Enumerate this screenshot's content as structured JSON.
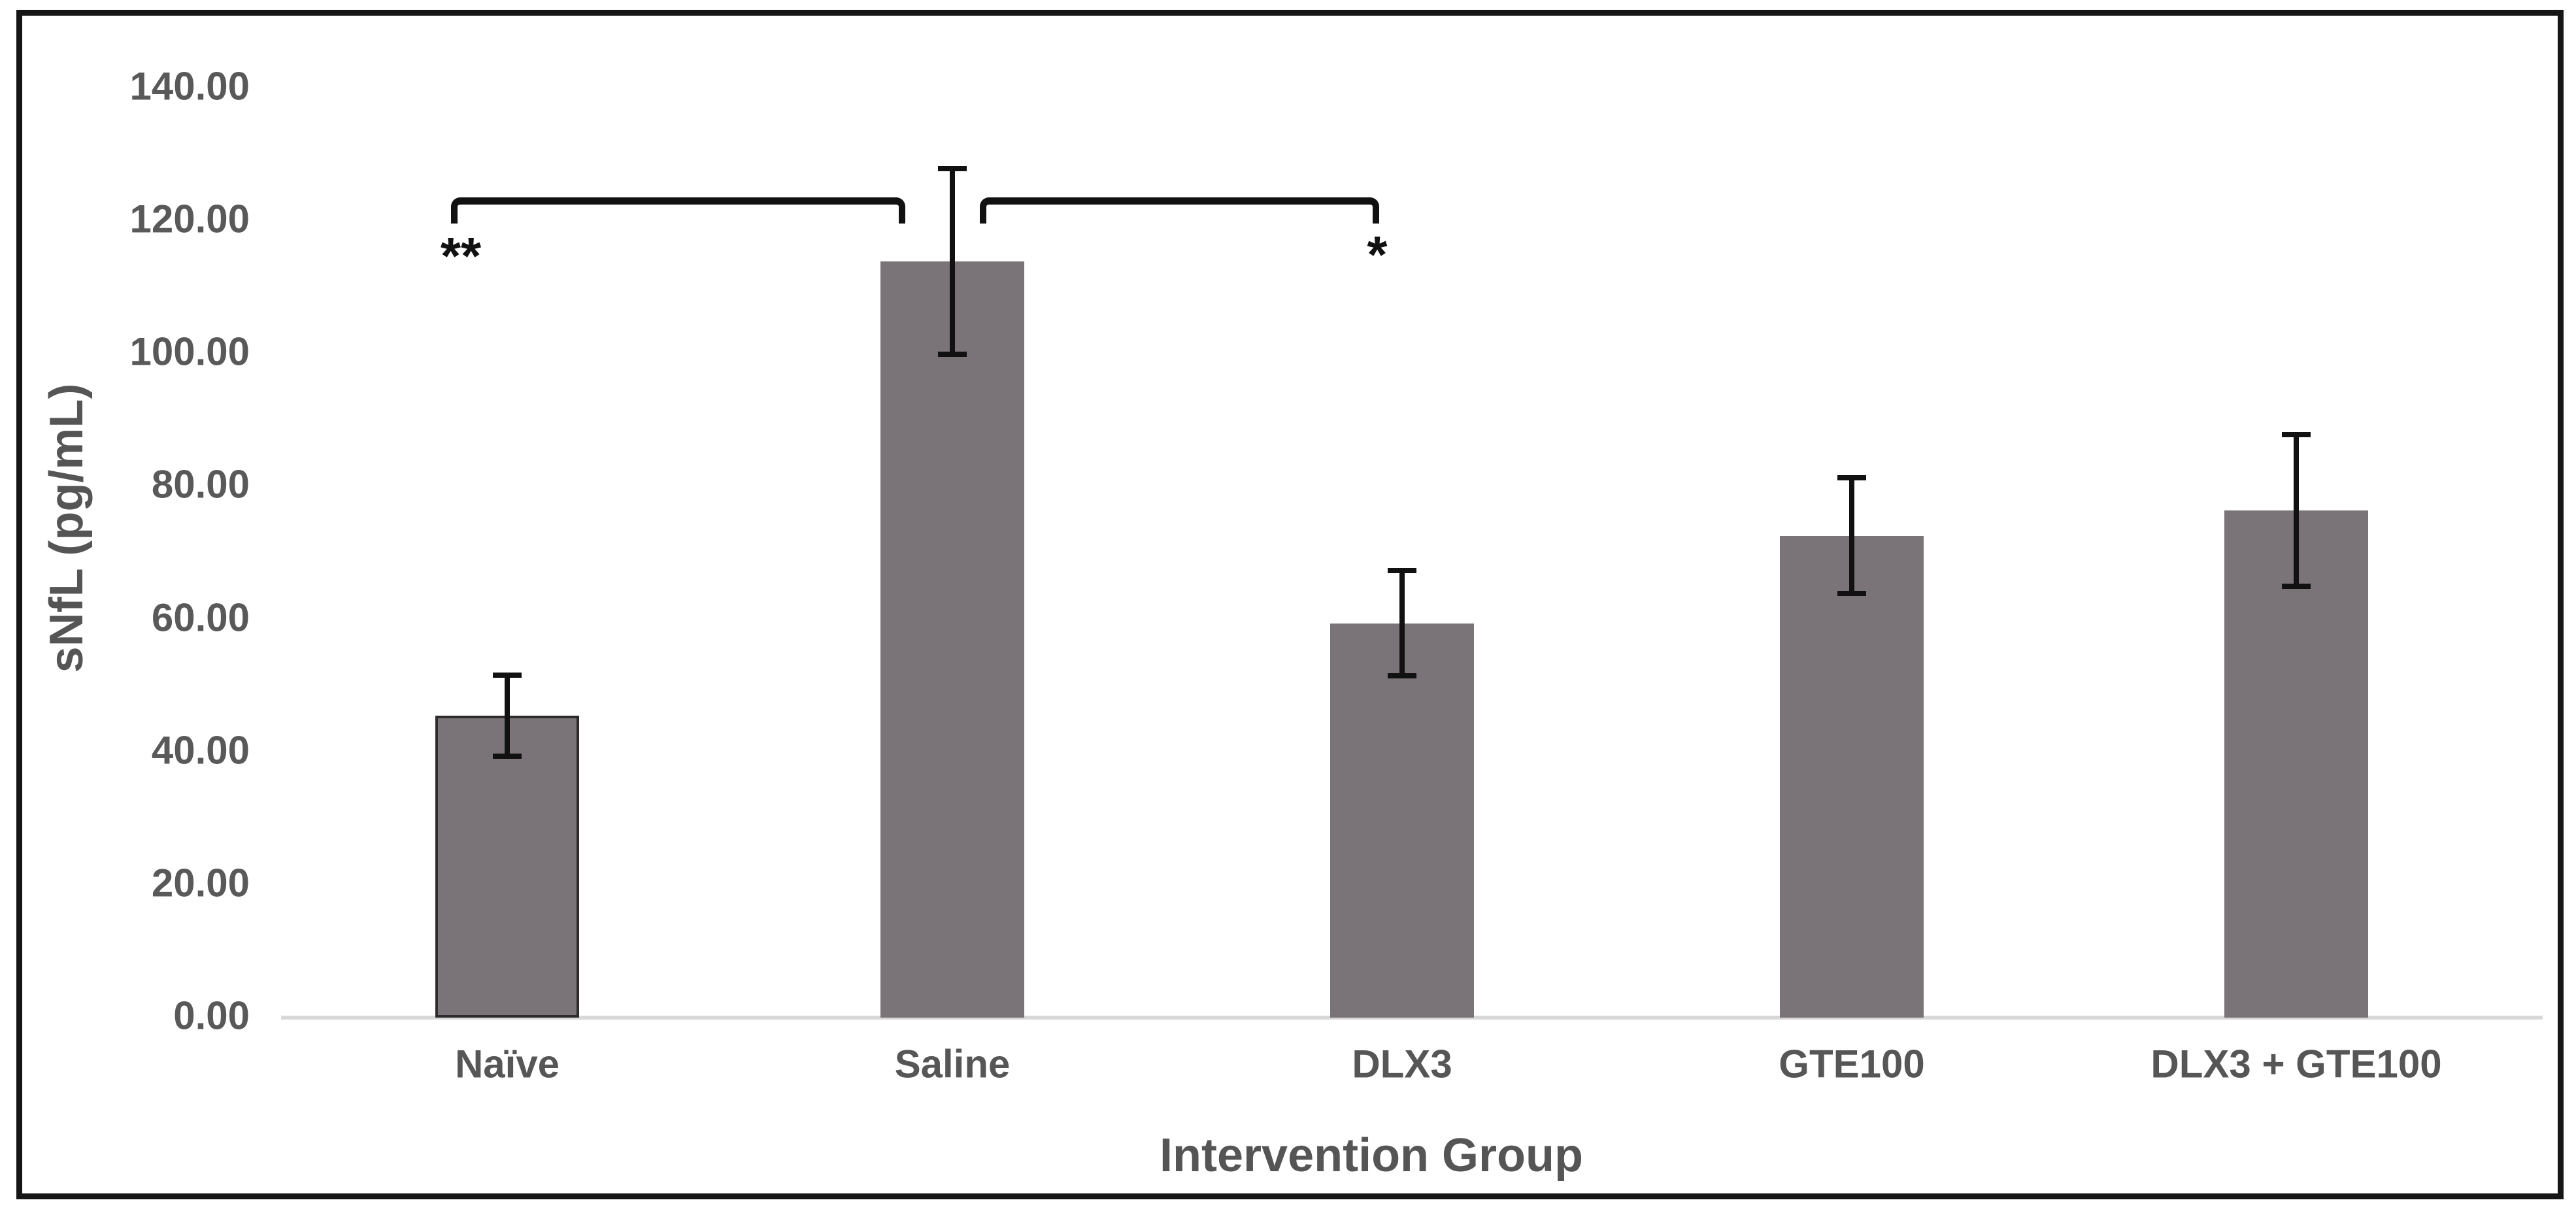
{
  "chart_data": {
    "type": "bar",
    "title": "",
    "categories": [
      "Naïve",
      "Saline",
      "DLX3",
      "GTE100",
      "DLX3 + GTE100"
    ],
    "values": [
      45.5,
      113.9,
      59.4,
      72.6,
      76.4
    ],
    "errors": [
      6.1,
      14.0,
      7.9,
      8.7,
      11.4
    ],
    "xlabel": "Intervention Group",
    "ylabel": "sNfL (pg/mL)",
    "ylim": [
      0,
      140
    ],
    "ytick_step": 20,
    "ytick_labels": [
      "0.00",
      "20.00",
      "40.00",
      "60.00",
      "80.00",
      "100.00",
      "120.00",
      "140.00"
    ],
    "grid": false,
    "legend": "none",
    "bar_color": "#7a7478",
    "outlined_bar": "Naïve",
    "error_bar_color": "#111111",
    "axis_line_color": "#d8d8d8",
    "text_color": "#595959",
    "significance": [
      {
        "from": "Naïve",
        "to": "Saline",
        "label": "**"
      },
      {
        "from": "Saline",
        "to": "DLX3",
        "label": "*"
      }
    ]
  }
}
